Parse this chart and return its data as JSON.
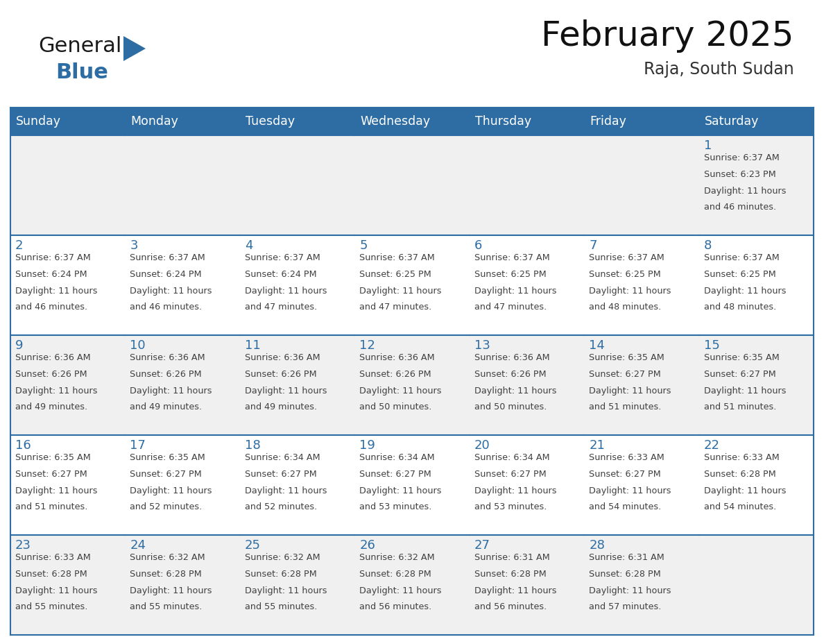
{
  "title": "February 2025",
  "subtitle": "Raja, South Sudan",
  "header_bg": "#2E6DA4",
  "header_text_color": "#FFFFFF",
  "day_names": [
    "Sunday",
    "Monday",
    "Tuesday",
    "Wednesday",
    "Thursday",
    "Friday",
    "Saturday"
  ],
  "cell_bg_odd": "#F0F0F0",
  "cell_bg_even": "#FFFFFF",
  "cell_border_color": "#2E6DA4",
  "day_number_color": "#2E6DA4",
  "text_color": "#404040",
  "logo_general_color": "#1a1a1a",
  "logo_blue_color": "#2E6DA4",
  "weeks": [
    [
      null,
      null,
      null,
      null,
      null,
      null,
      1
    ],
    [
      2,
      3,
      4,
      5,
      6,
      7,
      8
    ],
    [
      9,
      10,
      11,
      12,
      13,
      14,
      15
    ],
    [
      16,
      17,
      18,
      19,
      20,
      21,
      22
    ],
    [
      23,
      24,
      25,
      26,
      27,
      28,
      null
    ]
  ],
  "cell_data": {
    "1": {
      "sunrise": "6:37 AM",
      "sunset": "6:23 PM",
      "daylight": "11 hours and 46 minutes."
    },
    "2": {
      "sunrise": "6:37 AM",
      "sunset": "6:24 PM",
      "daylight": "11 hours and 46 minutes."
    },
    "3": {
      "sunrise": "6:37 AM",
      "sunset": "6:24 PM",
      "daylight": "11 hours and 46 minutes."
    },
    "4": {
      "sunrise": "6:37 AM",
      "sunset": "6:24 PM",
      "daylight": "11 hours and 47 minutes."
    },
    "5": {
      "sunrise": "6:37 AM",
      "sunset": "6:25 PM",
      "daylight": "11 hours and 47 minutes."
    },
    "6": {
      "sunrise": "6:37 AM",
      "sunset": "6:25 PM",
      "daylight": "11 hours and 47 minutes."
    },
    "7": {
      "sunrise": "6:37 AM",
      "sunset": "6:25 PM",
      "daylight": "11 hours and 48 minutes."
    },
    "8": {
      "sunrise": "6:37 AM",
      "sunset": "6:25 PM",
      "daylight": "11 hours and 48 minutes."
    },
    "9": {
      "sunrise": "6:36 AM",
      "sunset": "6:26 PM",
      "daylight": "11 hours and 49 minutes."
    },
    "10": {
      "sunrise": "6:36 AM",
      "sunset": "6:26 PM",
      "daylight": "11 hours and 49 minutes."
    },
    "11": {
      "sunrise": "6:36 AM",
      "sunset": "6:26 PM",
      "daylight": "11 hours and 49 minutes."
    },
    "12": {
      "sunrise": "6:36 AM",
      "sunset": "6:26 PM",
      "daylight": "11 hours and 50 minutes."
    },
    "13": {
      "sunrise": "6:36 AM",
      "sunset": "6:26 PM",
      "daylight": "11 hours and 50 minutes."
    },
    "14": {
      "sunrise": "6:35 AM",
      "sunset": "6:27 PM",
      "daylight": "11 hours and 51 minutes."
    },
    "15": {
      "sunrise": "6:35 AM",
      "sunset": "6:27 PM",
      "daylight": "11 hours and 51 minutes."
    },
    "16": {
      "sunrise": "6:35 AM",
      "sunset": "6:27 PM",
      "daylight": "11 hours and 51 minutes."
    },
    "17": {
      "sunrise": "6:35 AM",
      "sunset": "6:27 PM",
      "daylight": "11 hours and 52 minutes."
    },
    "18": {
      "sunrise": "6:34 AM",
      "sunset": "6:27 PM",
      "daylight": "11 hours and 52 minutes."
    },
    "19": {
      "sunrise": "6:34 AM",
      "sunset": "6:27 PM",
      "daylight": "11 hours and 53 minutes."
    },
    "20": {
      "sunrise": "6:34 AM",
      "sunset": "6:27 PM",
      "daylight": "11 hours and 53 minutes."
    },
    "21": {
      "sunrise": "6:33 AM",
      "sunset": "6:27 PM",
      "daylight": "11 hours and 54 minutes."
    },
    "22": {
      "sunrise": "6:33 AM",
      "sunset": "6:28 PM",
      "daylight": "11 hours and 54 minutes."
    },
    "23": {
      "sunrise": "6:33 AM",
      "sunset": "6:28 PM",
      "daylight": "11 hours and 55 minutes."
    },
    "24": {
      "sunrise": "6:32 AM",
      "sunset": "6:28 PM",
      "daylight": "11 hours and 55 minutes."
    },
    "25": {
      "sunrise": "6:32 AM",
      "sunset": "6:28 PM",
      "daylight": "11 hours and 55 minutes."
    },
    "26": {
      "sunrise": "6:32 AM",
      "sunset": "6:28 PM",
      "daylight": "11 hours and 56 minutes."
    },
    "27": {
      "sunrise": "6:31 AM",
      "sunset": "6:28 PM",
      "daylight": "11 hours and 56 minutes."
    },
    "28": {
      "sunrise": "6:31 AM",
      "sunset": "6:28 PM",
      "daylight": "11 hours and 57 minutes."
    }
  }
}
